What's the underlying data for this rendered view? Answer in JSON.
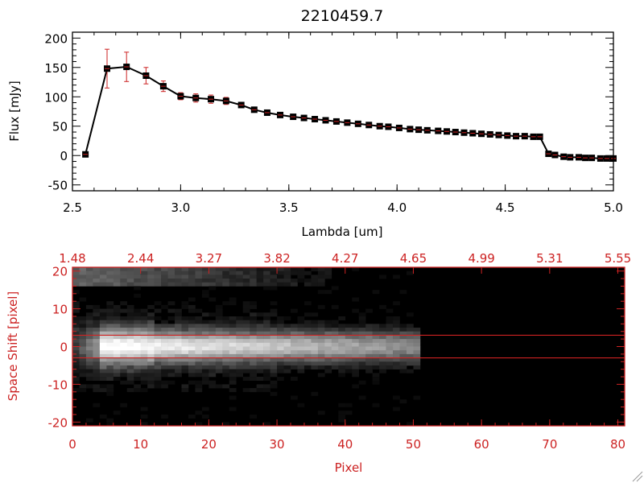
{
  "chart_data": [
    {
      "type": "line",
      "title": "2210459.7",
      "xlabel": "Lambda [um]",
      "ylabel": "Flux [mJy]",
      "xlim": [
        2.5,
        5.0
      ],
      "ylim": [
        -60,
        210
      ],
      "xticks": [
        2.5,
        3.0,
        3.5,
        4.0,
        4.5,
        5.0
      ],
      "xtick_labels": [
        "2.5",
        "3.0",
        "3.5",
        "4.0",
        "4.5",
        "5.0"
      ],
      "yticks": [
        -50,
        0,
        50,
        100,
        150,
        200
      ],
      "ytick_labels": [
        "-50",
        "0",
        "50",
        "100",
        "150",
        "200"
      ],
      "grid": false,
      "line_color": "#000000",
      "marker_color": "#000000",
      "errorbar_color": "#cc2222",
      "series": [
        {
          "x": [
            2.56,
            2.66,
            2.75,
            2.84,
            2.92,
            3.0,
            3.07,
            3.14,
            3.21,
            3.28,
            3.34,
            3.4,
            3.46,
            3.52,
            3.57,
            3.62,
            3.67,
            3.72,
            3.77,
            3.82,
            3.87,
            3.92,
            3.96,
            4.01,
            4.06,
            4.1,
            4.14,
            4.19,
            4.23,
            4.27,
            4.31,
            4.35,
            4.39,
            4.43,
            4.47,
            4.51,
            4.55,
            4.59,
            4.63,
            4.66,
            4.7,
            4.73,
            4.77,
            4.8,
            4.84,
            4.87,
            4.9,
            4.94,
            4.97,
            5.0
          ],
          "y": [
            2,
            148,
            151,
            136,
            118,
            101,
            98,
            96,
            93,
            86,
            78,
            73,
            69,
            66,
            64,
            62,
            60,
            58,
            56,
            54,
            52,
            50,
            49,
            47,
            45,
            44,
            43,
            42,
            41,
            40,
            39,
            38,
            37,
            36,
            35,
            34,
            33,
            33,
            32,
            32,
            3,
            1,
            -2,
            -3,
            -3,
            -4,
            -4,
            -5,
            -5,
            -5
          ],
          "yerr": [
            3,
            33,
            25,
            14,
            9,
            6,
            7,
            7,
            6,
            4,
            3,
            2,
            2,
            2,
            2,
            2,
            2,
            1,
            1,
            1,
            1,
            1,
            1,
            1,
            1,
            1,
            1,
            1,
            1,
            1,
            1,
            1,
            1,
            1,
            1,
            1,
            1,
            1,
            1,
            1,
            2,
            2,
            2,
            2,
            2,
            2,
            2,
            2,
            2,
            2
          ]
        }
      ]
    },
    {
      "type": "heatmap",
      "xlabel": "Pixel",
      "ylabel": "Space Shift [pixel]",
      "xlim": [
        0,
        81
      ],
      "ylim": [
        -21,
        21
      ],
      "xticks": [
        0,
        10,
        20,
        30,
        40,
        50,
        60,
        70,
        80
      ],
      "xtick_labels": [
        "0",
        "10",
        "20",
        "30",
        "40",
        "50",
        "60",
        "70",
        "80"
      ],
      "yticks": [
        -20,
        -10,
        0,
        10,
        20
      ],
      "ytick_labels": [
        "-20",
        "-10",
        "0",
        "10",
        "20"
      ],
      "top_axis_ticks": [
        0,
        10,
        20,
        30,
        40,
        50,
        60,
        70,
        80
      ],
      "top_axis_labels": [
        "1.48",
        "2.44",
        "3.27",
        "3.82",
        "4.27",
        "4.65",
        "4.99",
        "5.31",
        "5.55"
      ],
      "aperture_lines": [
        3,
        -3
      ],
      "axis_color": "#cc2222",
      "colormap": "grayscale"
    }
  ]
}
